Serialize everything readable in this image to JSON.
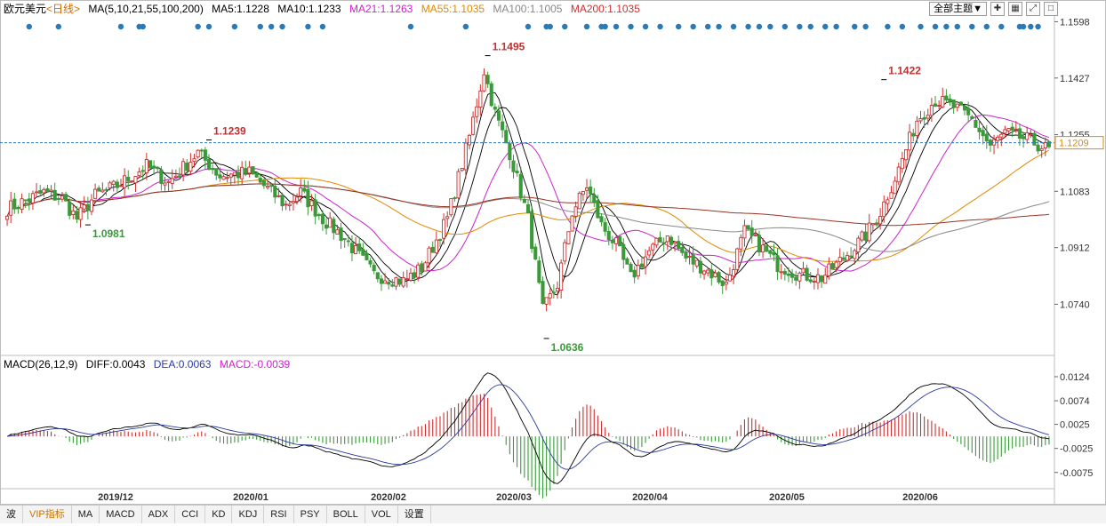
{
  "header": {
    "symbol": "欧元美元",
    "period": "<日线>",
    "ma_params": "MA(5,10,21,55,100,200)",
    "ma5": "MA5:1.1228",
    "ma10": "MA10:1.1233",
    "ma21": "MA21:1.1263",
    "ma55": "MA55:1.1035",
    "ma100": "MA100:1.1005",
    "ma200": "MA200:1.1035",
    "theme_button": "全部主题▼"
  },
  "macd_header": {
    "params": "MACD(26,12,9)",
    "diff": "DIFF:0.0043",
    "dea": "DEA:0.0063",
    "macd": "MACD:-0.0039"
  },
  "colors": {
    "up": "#cc3030",
    "down": "#3a9a3a",
    "ma5": "#000000",
    "ma10": "#000000",
    "ma21": "#cc22cc",
    "ma55": "#e08a00",
    "ma100": "#888888",
    "ma200": "#993322",
    "signal_dot": "#2a7ab8"
  },
  "toolbar": {
    "items": [
      "波",
      "VIP指标",
      "MA",
      "MACD",
      "ADX",
      "CCI",
      "KD",
      "KDJ",
      "RSI",
      "PSY",
      "BOLL",
      "VOL",
      "设置"
    ]
  },
  "chart_data": {
    "type": "candlestick",
    "price_axis": {
      "ticks": [
        "1.1598",
        "1.1427",
        "1.1255",
        "1.1083",
        "1.0912",
        "1.0740"
      ],
      "range": [
        1.059,
        1.161
      ]
    },
    "macd_axis": {
      "ticks": [
        "0.0124",
        "0.0074",
        "0.0025",
        "-0.0025",
        "-0.0075"
      ],
      "range": [
        -0.0105,
        0.0135
      ]
    },
    "current_price": "1.1209",
    "date_labels": [
      "2019/12",
      "2020/01",
      "2020/02",
      "2020/03",
      "2020/04",
      "2020/05",
      "2020/06"
    ],
    "annotations": [
      {
        "label": "1.1239",
        "value": 1.1239,
        "kind": "high"
      },
      {
        "label": "1.0981",
        "value": 1.0981,
        "kind": "low"
      },
      {
        "label": "1.1495",
        "value": 1.1495,
        "kind": "high"
      },
      {
        "label": "1.0636",
        "value": 1.0636,
        "kind": "low"
      },
      {
        "label": "1.1422",
        "value": 1.1422,
        "kind": "high"
      }
    ],
    "close_anchors": [
      [
        0,
        1.103
      ],
      [
        10,
        1.108
      ],
      [
        15,
        1.106
      ],
      [
        19,
        1.1
      ],
      [
        24,
        1.107
      ],
      [
        30,
        1.11
      ],
      [
        38,
        1.116
      ],
      [
        44,
        1.111
      ],
      [
        52,
        1.12
      ],
      [
        58,
        1.113
      ],
      [
        66,
        1.114
      ],
      [
        72,
        1.108
      ],
      [
        76,
        1.104
      ],
      [
        80,
        1.108
      ],
      [
        86,
        1.1
      ],
      [
        92,
        1.094
      ],
      [
        100,
        1.083
      ],
      [
        108,
        1.081
      ],
      [
        113,
        1.085
      ],
      [
        120,
        1.1
      ],
      [
        126,
        1.125
      ],
      [
        130,
        1.145
      ],
      [
        133,
        1.132
      ],
      [
        137,
        1.12
      ],
      [
        142,
        1.1
      ],
      [
        146,
        1.072
      ],
      [
        150,
        1.08
      ],
      [
        154,
        1.102
      ],
      [
        158,
        1.11
      ],
      [
        162,
        1.098
      ],
      [
        166,
        1.092
      ],
      [
        170,
        1.082
      ],
      [
        175,
        1.09
      ],
      [
        180,
        1.095
      ],
      [
        185,
        1.088
      ],
      [
        190,
        1.085
      ],
      [
        196,
        1.08
      ],
      [
        201,
        1.096
      ],
      [
        205,
        1.092
      ],
      [
        210,
        1.086
      ],
      [
        216,
        1.083
      ],
      [
        222,
        1.082
      ],
      [
        228,
        1.088
      ],
      [
        234,
        1.095
      ],
      [
        238,
        1.102
      ],
      [
        243,
        1.115
      ],
      [
        248,
        1.13
      ],
      [
        253,
        1.136
      ],
      [
        258,
        1.134
      ],
      [
        263,
        1.13
      ],
      [
        268,
        1.122
      ],
      [
        272,
        1.126
      ],
      [
        278,
        1.124
      ],
      [
        284,
        1.1209
      ]
    ],
    "signal_dot_days": [
      6,
      14,
      31,
      36,
      37,
      52,
      55,
      62,
      69,
      72,
      75,
      82,
      86,
      110,
      125,
      142,
      147,
      148,
      152,
      158,
      162,
      163,
      166,
      170,
      174,
      178,
      183,
      187,
      191,
      194,
      198,
      202,
      205,
      208,
      212,
      216,
      219,
      223,
      226,
      231,
      234,
      240,
      244,
      249,
      253,
      256,
      259,
      263,
      267,
      271,
      276,
      277,
      279,
      281
    ]
  }
}
